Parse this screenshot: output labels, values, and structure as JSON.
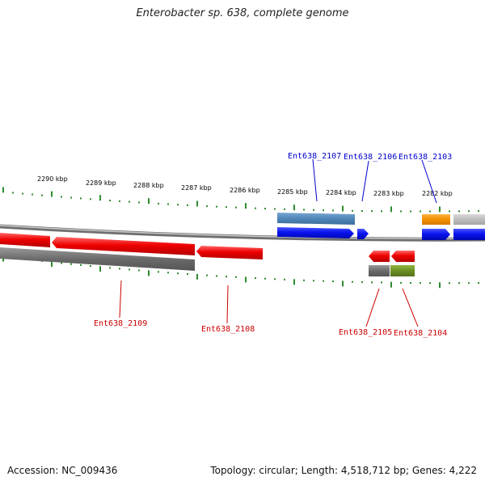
{
  "header": {
    "title": "Enterobacter sp. 638, complete genome"
  },
  "footer": {
    "accession": "Accession: NC_009436",
    "summary": "Topology: circular; Length: 4,518,712 bp; Genes: 4,222"
  },
  "scale": {
    "ticks": [
      "2290 kbp",
      "2289 kbp",
      "2288 kbp",
      "2287 kbp",
      "2286 kbp",
      "2285 kbp",
      "2284 kbp",
      "2283 kbp",
      "2282 kbp"
    ]
  },
  "genes": {
    "forward": [
      "Ent638_2107",
      "Ent638_2106",
      "Ent638_2103"
    ],
    "reverse": [
      "Ent638_2109",
      "Ent638_2108",
      "Ent638_2105",
      "Ent638_2104"
    ]
  },
  "colors": {
    "forward_label": "#0000cc",
    "reverse_label": "#cc0000",
    "tick": "#2e8b2e",
    "forward_cds": "#0a14f0",
    "reverse_cds": "#ee0000",
    "forward_feature": "#4f86b8",
    "orange_feature": "#f39000",
    "grey_feature": "#6e6e6e",
    "olive_feature": "#6b8e23"
  }
}
